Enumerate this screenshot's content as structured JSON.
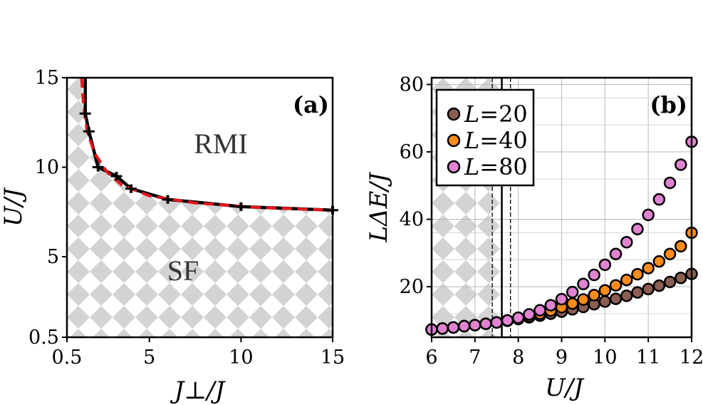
{
  "chart_data": [
    {
      "panel": "(a)",
      "type": "line",
      "xlabel": "J⊥/J",
      "ylabel": "U/J",
      "xlim": [
        0.5,
        15
      ],
      "ylim": [
        0.5,
        15
      ],
      "x_ticks": [
        "0.5",
        "5",
        "10",
        "15"
      ],
      "y_ticks": [
        "0.5",
        "5",
        "10",
        "15"
      ],
      "regions": [
        "RMI",
        "SF"
      ],
      "series": [
        {
          "style": "solid black with error bars",
          "x": [
            1.5,
            1.5,
            1.7,
            2.2,
            3.2,
            4.0,
            6.0,
            10.0,
            15.0
          ],
          "y": [
            15.0,
            13.0,
            12.0,
            10.0,
            9.5,
            8.8,
            8.2,
            7.8,
            7.6
          ]
        },
        {
          "style": "dashed red fit",
          "x": [
            1.3,
            1.4,
            1.6,
            2.0,
            2.7,
            3.5,
            5.0,
            7.5,
            11.0,
            15.0
          ],
          "y": [
            15.0,
            13.5,
            12.0,
            10.8,
            9.7,
            9.0,
            8.4,
            8.0,
            7.75,
            7.6
          ]
        }
      ],
      "background": "grey checkerboard (SF) below curve, white (RMI) above"
    },
    {
      "panel": "(b)",
      "type": "scatter",
      "xlabel": "U/J",
      "ylabel": "LΔE/J",
      "xlim": [
        6,
        12
      ],
      "ylim": [
        5,
        82
      ],
      "x_ticks": [
        "6",
        "7",
        "8",
        "9",
        "10",
        "11",
        "12"
      ],
      "y_ticks": [
        "20",
        "40",
        "60",
        "80"
      ],
      "grid": true,
      "legend_position": "top-left",
      "vertical_lines": [
        {
          "x": 7.62,
          "style": "solid"
        },
        {
          "x": 7.4,
          "style": "dashed"
        },
        {
          "x": 7.82,
          "style": "dashed"
        }
      ],
      "series": [
        {
          "L": "20",
          "color": "#8b5e52",
          "x": [
            6.0,
            6.25,
            6.5,
            6.75,
            7.0,
            7.25,
            7.5,
            7.75,
            8.0,
            8.25,
            8.5,
            8.75,
            9.0,
            9.25,
            9.5,
            9.75,
            10.0,
            10.25,
            10.5,
            10.75,
            11.0,
            11.25,
            11.5,
            11.75,
            12.0
          ],
          "y": [
            7.3,
            7.6,
            7.9,
            8.3,
            8.6,
            9.0,
            9.4,
            9.9,
            10.4,
            10.9,
            11.4,
            12.0,
            12.6,
            13.3,
            14.0,
            14.8,
            15.6,
            16.4,
            17.3,
            18.3,
            19.3,
            20.3,
            21.4,
            22.6,
            23.8
          ]
        },
        {
          "L": "40",
          "color": "#ff8c1a",
          "x": [
            6.0,
            6.25,
            6.5,
            6.75,
            7.0,
            7.25,
            7.5,
            7.75,
            8.0,
            8.25,
            8.5,
            8.75,
            9.0,
            9.25,
            9.5,
            9.75,
            10.0,
            10.25,
            10.5,
            10.75,
            11.0,
            11.25,
            11.5,
            11.75,
            12.0
          ],
          "y": [
            7.3,
            7.6,
            7.9,
            8.3,
            8.6,
            9.0,
            9.4,
            9.9,
            10.5,
            11.2,
            12.0,
            12.9,
            13.9,
            15.0,
            16.2,
            17.5,
            18.9,
            20.4,
            22.0,
            23.7,
            25.5,
            27.5,
            29.7,
            32.0,
            36.0
          ]
        },
        {
          "L": "80",
          "color": "#e083d0",
          "x": [
            6.0,
            6.25,
            6.5,
            6.75,
            7.0,
            7.25,
            7.5,
            7.75,
            8.0,
            8.25,
            8.5,
            8.75,
            9.0,
            9.25,
            9.5,
            9.75,
            10.0,
            10.25,
            10.5,
            10.75,
            11.0,
            11.25,
            11.5,
            11.75,
            12.0
          ],
          "y": [
            7.3,
            7.6,
            7.9,
            8.3,
            8.6,
            9.0,
            9.4,
            10.0,
            10.8,
            11.8,
            13.0,
            14.5,
            16.3,
            18.4,
            20.8,
            23.5,
            26.5,
            29.7,
            33.2,
            37.1,
            41.3,
            45.9,
            50.8,
            56.2,
            63.0
          ]
        }
      ]
    }
  ]
}
